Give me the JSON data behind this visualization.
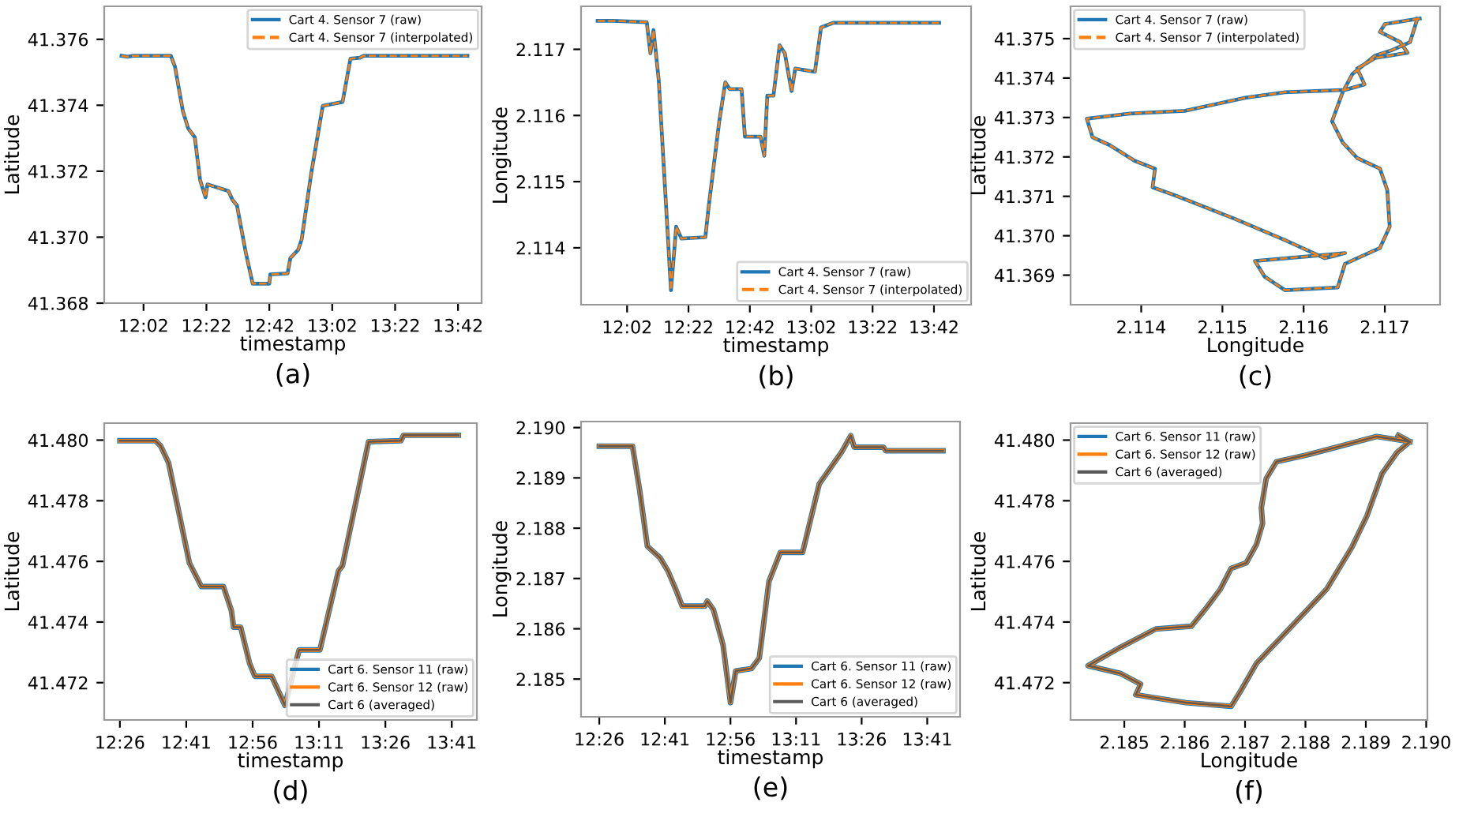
{
  "chart_data": [
    {
      "type": "line",
      "xlabel": "timestamp",
      "ylabel": "Latitude",
      "annotations": [
        "(a)"
      ],
      "legend": "top right",
      "x": [
        11.9167,
        11.95,
        11.978,
        12.178,
        12.2,
        12.2417,
        12.27,
        12.305,
        12.3333,
        12.3617,
        12.372,
        12.4833,
        12.505,
        12.5283,
        12.575,
        12.6117,
        12.7,
        12.705,
        12.7967,
        12.8117,
        12.8533,
        12.8717,
        12.9217,
        12.9833,
        13.0883,
        13.13,
        13.18,
        13.2,
        13.75
      ],
      "series": [
        {
          "name": "Cart 4. Sensor 7 (raw)",
          "color": "#1f77b4",
          "line_style": "solid",
          "values": [
            41.3755,
            41.37547,
            41.3755,
            41.3755,
            41.37517,
            41.37383,
            41.3733,
            41.37303,
            41.37173,
            41.37121,
            41.3716,
            41.3714,
            41.37113,
            41.37097,
            41.36954,
            41.36859,
            41.36859,
            41.36887,
            41.3689,
            41.36937,
            41.36962,
            41.36994,
            41.37192,
            41.37398,
            41.3741,
            41.37541,
            41.37544,
            41.3755,
            41.3755
          ]
        },
        {
          "name": "Cart 4. Sensor 7 (interpolated)",
          "color": "#ff7f0e",
          "line_style": "dashed",
          "values": [
            41.3755,
            41.37547,
            41.3755,
            41.3755,
            41.37517,
            41.37383,
            41.3733,
            41.37303,
            41.37173,
            41.37121,
            41.3716,
            41.3714,
            41.37113,
            41.37097,
            41.36954,
            41.36859,
            41.36859,
            41.36887,
            41.3689,
            41.36937,
            41.36962,
            41.36994,
            41.37192,
            41.37398,
            41.3741,
            41.37541,
            41.37544,
            41.3755,
            41.3755
          ]
        }
      ],
      "xlim": [
        11.825,
        13.825
      ],
      "ylim": [
        41.368,
        41.377
      ],
      "xticks": [
        {
          "value": 12.0333,
          "label": "12:02"
        },
        {
          "value": 12.3667,
          "label": "12:22"
        },
        {
          "value": 12.7,
          "label": "12:42"
        },
        {
          "value": 13.0333,
          "label": "13:02"
        },
        {
          "value": 13.3667,
          "label": "13:22"
        },
        {
          "value": 13.7,
          "label": "13:42"
        }
      ],
      "yticks": [
        41.368,
        {
          "value": 41.37,
          "label": "41.370"
        },
        41.372,
        41.374,
        41.376
      ]
    },
    {
      "type": "line",
      "xlabel": "timestamp",
      "ylabel": "Longitude",
      "annotations": [
        "(b)"
      ],
      "legend": "bottom right",
      "x": [
        11.8733,
        11.9567,
        12.14,
        12.16,
        12.1767,
        12.205,
        12.2717,
        12.2883,
        12.3,
        12.3283,
        12.4583,
        12.4767,
        12.5333,
        12.5667,
        12.59,
        12.655,
        12.6733,
        12.7583,
        12.7783,
        12.795,
        12.8283,
        12.8617,
        12.89,
        12.9267,
        12.9467,
        13.0533,
        13.0867,
        13.1517,
        13.7283
      ],
      "series": [
        {
          "name": "Cart 4. Sensor 7 (raw)",
          "color": "#1f77b4",
          "line_style": "solid",
          "values": [
            2.11743,
            2.11743,
            2.11741,
            2.11694,
            2.11729,
            2.11654,
            2.11336,
            2.11392,
            2.11432,
            2.11414,
            2.11416,
            2.11463,
            2.1159,
            2.1165,
            2.1164,
            2.1164,
            2.11568,
            2.11568,
            2.11539,
            2.1163,
            2.1163,
            2.11706,
            2.11694,
            2.11637,
            2.11671,
            2.11666,
            2.11733,
            2.1174,
            2.1174
          ]
        },
        {
          "name": "Cart 4. Sensor 7 (interpolated)",
          "color": "#ff7f0e",
          "line_style": "dashed",
          "values": [
            2.11743,
            2.11743,
            2.11741,
            2.11694,
            2.11729,
            2.11654,
            2.11336,
            2.11392,
            2.11432,
            2.11414,
            2.11416,
            2.11463,
            2.1159,
            2.1165,
            2.1164,
            2.1164,
            2.11568,
            2.11568,
            2.11539,
            2.1163,
            2.1163,
            2.11706,
            2.11694,
            2.11637,
            2.11671,
            2.11666,
            2.11733,
            2.1174,
            2.1174
          ]
        }
      ],
      "xlim": [
        11.7833,
        13.9017
      ],
      "ylim": [
        2.11314,
        2.11765
      ],
      "xticks": [
        {
          "value": 12.0333,
          "label": "12:02"
        },
        {
          "value": 12.3667,
          "label": "12:22"
        },
        {
          "value": 12.7,
          "label": "12:42"
        },
        {
          "value": 13.0333,
          "label": "13:02"
        },
        {
          "value": 13.3667,
          "label": "13:22"
        },
        {
          "value": 13.7,
          "label": "13:42"
        }
      ],
      "yticks": [
        2.114,
        2.115,
        2.116,
        2.117
      ]
    },
    {
      "type": "line",
      "xlabel": "Longitude",
      "ylabel": "Latitude",
      "annotations": [
        "(c)"
      ],
      "legend": "top left",
      "series": [
        {
          "name": "Cart 4. Sensor 7 (raw)",
          "color": "#1f77b4",
          "line_style": "solid",
          "x": [
            2.11743,
            2.117,
            2.11694,
            2.11719,
            2.11728,
            2.11688,
            2.11666,
            2.11675,
            2.11651,
            2.11577,
            2.11528,
            2.11454,
            2.11386,
            2.11333,
            2.1134,
            2.11361,
            2.11392,
            2.11417,
            2.11414,
            2.11441,
            2.11515,
            2.11577,
            2.11626,
            2.11638,
            2.11651,
            2.1154,
            2.11552,
            2.11577,
            2.11642,
            2.11651,
            2.11694,
            2.11706,
            2.11703,
            2.11694,
            2.11666,
            2.11648,
            2.11635,
            2.11648,
            2.1166,
            2.11688,
            2.11709,
            2.11731,
            2.1174
          ],
          "values": [
            41.37551,
            41.37537,
            41.37517,
            41.37491,
            41.37464,
            41.37451,
            41.37424,
            41.37384,
            41.3737,
            41.37364,
            41.3735,
            41.37317,
            41.3731,
            41.37297,
            41.3725,
            41.3723,
            41.3719,
            41.3717,
            41.37123,
            41.37103,
            41.37043,
            41.36989,
            41.36943,
            41.36949,
            41.36956,
            41.36936,
            41.36896,
            41.36862,
            41.36869,
            41.36929,
            41.36969,
            41.37023,
            41.37116,
            41.3717,
            41.37197,
            41.37237,
            41.3729,
            41.37364,
            41.3741,
            41.37457,
            41.37471,
            41.37491,
            41.3755
          ]
        },
        {
          "name": "Cart 4. Sensor 7 (interpolated)",
          "color": "#ff7f0e",
          "line_style": "dashed",
          "x": [
            2.11743,
            2.117,
            2.11694,
            2.11719,
            2.11728,
            2.11688,
            2.11666,
            2.11675,
            2.11651,
            2.11577,
            2.11528,
            2.11454,
            2.11386,
            2.11333,
            2.1134,
            2.11361,
            2.11392,
            2.11417,
            2.11414,
            2.11441,
            2.11515,
            2.11577,
            2.11626,
            2.11638,
            2.11651,
            2.1154,
            2.11552,
            2.11577,
            2.11642,
            2.11651,
            2.11694,
            2.11706,
            2.11703,
            2.11694,
            2.11666,
            2.11648,
            2.11635,
            2.11648,
            2.1166,
            2.11688,
            2.11709,
            2.11731,
            2.1174
          ],
          "values": [
            41.37551,
            41.37537,
            41.37517,
            41.37491,
            41.37464,
            41.37451,
            41.37424,
            41.37384,
            41.3737,
            41.37364,
            41.3735,
            41.37317,
            41.3731,
            41.37297,
            41.3725,
            41.3723,
            41.3719,
            41.3717,
            41.37123,
            41.37103,
            41.37043,
            41.36989,
            41.36943,
            41.36949,
            41.36956,
            41.36936,
            41.36896,
            41.36862,
            41.36869,
            41.36929,
            41.36969,
            41.37023,
            41.37116,
            41.3717,
            41.37197,
            41.37237,
            41.3729,
            41.37364,
            41.3741,
            41.37457,
            41.37471,
            41.37491,
            41.3755
          ]
        }
      ],
      "xlim": [
        2.11313,
        2.11768
      ],
      "ylim": [
        41.36825,
        41.37582
      ],
      "xticks": [
        2.114,
        2.115,
        2.116,
        2.117
      ],
      "yticks": [
        41.369,
        {
          "value": 41.37,
          "label": "41.370"
        },
        41.371,
        41.372,
        41.373,
        41.374,
        41.375
      ]
    },
    {
      "type": "line",
      "xlabel": "timestamp",
      "ylabel": "Latitude",
      "annotations": [
        "(d)"
      ],
      "legend": "bottom right",
      "x": [
        12.4333,
        12.5672,
        12.5867,
        12.6167,
        12.695,
        12.74,
        12.8233,
        12.8533,
        12.8617,
        12.8883,
        12.9217,
        12.9417,
        13.005,
        13.055,
        13.1083,
        13.1867,
        13.2567,
        13.2717,
        13.37,
        13.4917,
        13.5017,
        13.7083
      ],
      "series": [
        {
          "name": "Cart 6. Sensor 11 (raw)",
          "color": "#1f77b4",
          "line_style": "solid",
          "values": [
            41.47998,
            41.47998,
            41.47981,
            41.47925,
            41.47595,
            41.47517,
            41.47517,
            41.47438,
            41.47383,
            41.47383,
            41.47264,
            41.47221,
            41.47221,
            41.47125,
            41.47308,
            41.47308,
            41.47569,
            41.47586,
            41.47995,
            41.47998,
            41.48016,
            41.48016
          ]
        },
        {
          "name": "Cart 6. Sensor 12 (raw)",
          "color": "#ff7f0e",
          "line_style": "solid",
          "values": [
            41.47998,
            41.47998,
            41.47981,
            41.47925,
            41.47595,
            41.47517,
            41.47517,
            41.47438,
            41.47383,
            41.47383,
            41.47264,
            41.47221,
            41.47221,
            41.47125,
            41.47308,
            41.47308,
            41.47569,
            41.47586,
            41.47995,
            41.47998,
            41.48016,
            41.48016
          ]
        },
        {
          "name": "Cart 6 (averaged)",
          "color": "#595959",
          "line_style": "solid",
          "values": [
            41.47998,
            41.47998,
            41.47981,
            41.47925,
            41.47595,
            41.47517,
            41.47517,
            41.47438,
            41.47383,
            41.47383,
            41.47264,
            41.47221,
            41.47221,
            41.47125,
            41.47308,
            41.47308,
            41.47569,
            41.47586,
            41.47995,
            41.47998,
            41.48016,
            41.48016
          ]
        }
      ],
      "xlim": [
        12.3743,
        13.7778
      ],
      "ylim": [
        41.47077,
        41.48056
      ],
      "xticks": [
        {
          "value": 12.4333,
          "label": "12:26"
        },
        {
          "value": 12.6833,
          "label": "12:41"
        },
        {
          "value": 12.9333,
          "label": "12:56"
        },
        {
          "value": 13.1833,
          "label": "13:11"
        },
        {
          "value": 13.4333,
          "label": "13:26"
        },
        {
          "value": 13.6833,
          "label": "13:41"
        }
      ],
      "yticks": [
        41.472,
        41.474,
        41.476,
        41.478,
        {
          "value": 41.48,
          "label": "41.480"
        }
      ]
    },
    {
      "type": "line",
      "xlabel": "timestamp",
      "ylabel": "Longitude",
      "annotations": [
        "(e)"
      ],
      "legend": "bottom right",
      "x": [
        12.4333,
        12.56,
        12.5867,
        12.6167,
        12.665,
        12.695,
        12.725,
        12.7493,
        12.835,
        12.845,
        12.8683,
        12.905,
        12.9333,
        12.9533,
        13.0133,
        13.0433,
        13.08,
        13.1233,
        13.2083,
        13.2717,
        13.3567,
        13.3917,
        13.405,
        13.5167,
        13.525,
        13.7433
      ],
      "series": [
        {
          "name": "Cart 6. Sensor 11 (raw)",
          "color": "#1f77b4",
          "line_style": "solid",
          "values": [
            2.18963,
            2.18963,
            2.18877,
            2.18764,
            2.18741,
            2.18715,
            2.18678,
            2.18645,
            2.18645,
            2.18655,
            2.18638,
            2.18568,
            2.18453,
            2.18516,
            2.18521,
            2.18542,
            2.18694,
            2.18752,
            2.18752,
            2.18888,
            2.18951,
            2.18984,
            2.18961,
            2.18961,
            2.18954,
            2.18954
          ]
        },
        {
          "name": "Cart 6. Sensor 12 (raw)",
          "color": "#ff7f0e",
          "line_style": "solid",
          "values": [
            2.18963,
            2.18963,
            2.18877,
            2.18764,
            2.18741,
            2.18715,
            2.18678,
            2.18645,
            2.18645,
            2.18655,
            2.18638,
            2.18568,
            2.18453,
            2.18516,
            2.18521,
            2.18542,
            2.18694,
            2.18752,
            2.18752,
            2.18888,
            2.18951,
            2.18984,
            2.18961,
            2.18961,
            2.18954,
            2.18954
          ]
        },
        {
          "name": "Cart 6 (averaged)",
          "color": "#595959",
          "line_style": "solid",
          "values": [
            2.18963,
            2.18963,
            2.18877,
            2.18764,
            2.18741,
            2.18715,
            2.18678,
            2.18645,
            2.18645,
            2.18655,
            2.18638,
            2.18568,
            2.18453,
            2.18516,
            2.18521,
            2.18542,
            2.18694,
            2.18752,
            2.18752,
            2.18888,
            2.18951,
            2.18984,
            2.18961,
            2.18961,
            2.18954,
            2.18954
          ]
        }
      ],
      "xlim": [
        12.3639,
        13.8083
      ],
      "ylim": [
        2.18425,
        2.19012
      ],
      "xticks": [
        {
          "value": 12.4333,
          "label": "12:26"
        },
        {
          "value": 12.6833,
          "label": "12:41"
        },
        {
          "value": 12.9333,
          "label": "12:56"
        },
        {
          "value": 13.1833,
          "label": "13:11"
        },
        {
          "value": 13.4333,
          "label": "13:26"
        },
        {
          "value": 13.6833,
          "label": "13:41"
        }
      ],
      "yticks": [
        2.185,
        2.186,
        2.187,
        2.188,
        2.189,
        {
          "value": 2.19,
          "label": "2.190"
        }
      ]
    },
    {
      "type": "line",
      "xlabel": "Longitude",
      "ylabel": "Latitude",
      "annotations": [
        "(f)"
      ],
      "legend": "top left",
      "series": [
        {
          "name": "Cart 6. Sensor 11 (raw)",
          "color": "#1f77b4",
          "line_style": "solid",
          "x": [
            2.18973,
            2.18918,
            2.18852,
            2.18802,
            2.18752,
            2.18735,
            2.18727,
            2.18729,
            2.18719,
            2.18702,
            2.18677,
            2.18659,
            2.18636,
            2.18611,
            2.18552,
            2.18494,
            2.1844,
            2.18494,
            2.18527,
            2.18519,
            2.18602,
            2.18677,
            2.18694,
            2.18719,
            2.18769,
            2.18835,
            2.18877,
            2.18902,
            2.18927,
            2.18952,
            2.18973,
            2.18954
          ],
          "values": [
            41.47995,
            41.48012,
            41.47977,
            41.47951,
            41.47929,
            41.47873,
            41.47777,
            41.47725,
            41.47656,
            41.47595,
            41.47577,
            41.47508,
            41.47447,
            41.47386,
            41.47377,
            41.47317,
            41.47256,
            41.4723,
            41.47195,
            41.4716,
            41.47134,
            41.47122,
            41.47177,
            41.47264,
            41.47369,
            41.47508,
            41.47647,
            41.47751,
            41.4789,
            41.4796,
            41.47995,
            41.48016
          ]
        },
        {
          "name": "Cart 6. Sensor 12 (raw)",
          "color": "#ff7f0e",
          "line_style": "solid",
          "x": [
            2.18973,
            2.18918,
            2.18852,
            2.18802,
            2.18752,
            2.18735,
            2.18727,
            2.18729,
            2.18719,
            2.18702,
            2.18677,
            2.18659,
            2.18636,
            2.18611,
            2.18552,
            2.18494,
            2.1844,
            2.18494,
            2.18527,
            2.18519,
            2.18602,
            2.18677,
            2.18694,
            2.18719,
            2.18769,
            2.18835,
            2.18877,
            2.18902,
            2.18927,
            2.18952,
            2.18973,
            2.18954
          ],
          "values": [
            41.47995,
            41.48012,
            41.47977,
            41.47951,
            41.47929,
            41.47873,
            41.47777,
            41.47725,
            41.47656,
            41.47595,
            41.47577,
            41.47508,
            41.47447,
            41.47386,
            41.47377,
            41.47317,
            41.47256,
            41.4723,
            41.47195,
            41.4716,
            41.47134,
            41.47122,
            41.47177,
            41.47264,
            41.47369,
            41.47508,
            41.47647,
            41.47751,
            41.4789,
            41.4796,
            41.47995,
            41.48016
          ]
        },
        {
          "name": "Cart 6 (averaged)",
          "color": "#595959",
          "line_style": "solid",
          "x": [
            2.18973,
            2.18918,
            2.18852,
            2.18802,
            2.18752,
            2.18735,
            2.18727,
            2.18729,
            2.18719,
            2.18702,
            2.18677,
            2.18659,
            2.18636,
            2.18611,
            2.18552,
            2.18494,
            2.1844,
            2.18494,
            2.18527,
            2.18519,
            2.18602,
            2.18677,
            2.18694,
            2.18719,
            2.18769,
            2.18835,
            2.18877,
            2.18902,
            2.18927,
            2.18952,
            2.18973,
            2.18954
          ],
          "values": [
            41.47995,
            41.48012,
            41.47977,
            41.47951,
            41.47929,
            41.47873,
            41.47777,
            41.47725,
            41.47656,
            41.47595,
            41.47577,
            41.47508,
            41.47447,
            41.47386,
            41.47377,
            41.47317,
            41.47256,
            41.4723,
            41.47195,
            41.4716,
            41.47134,
            41.47122,
            41.47177,
            41.47264,
            41.47369,
            41.47508,
            41.47647,
            41.47751,
            41.4789,
            41.4796,
            41.47995,
            41.48016
          ]
        }
      ],
      "xlim": [
        2.18411,
        2.19002
      ],
      "ylim": [
        41.47077,
        41.48056
      ],
      "xticks": [
        2.185,
        2.186,
        2.187,
        2.188,
        2.189,
        {
          "value": 2.19,
          "label": "2.190"
        }
      ],
      "yticks": [
        41.472,
        41.474,
        41.476,
        41.478,
        {
          "value": 41.48,
          "label": "41.480"
        }
      ]
    }
  ]
}
